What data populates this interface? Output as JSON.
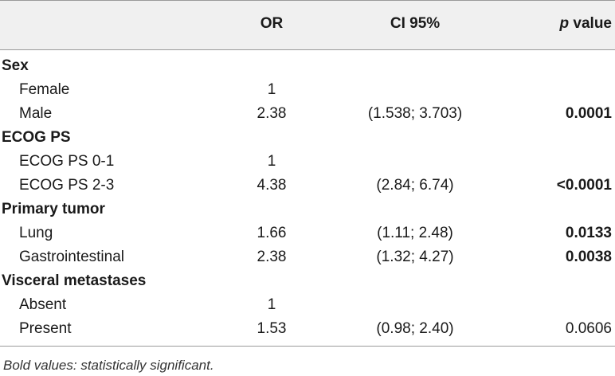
{
  "header": {
    "or": "OR",
    "ci": "CI 95%",
    "p_italic": "p",
    "p_rest": " value"
  },
  "groups": {
    "sex": {
      "label": "Sex",
      "rows": [
        {
          "label": "Female",
          "or": "1",
          "ci": "",
          "p": ""
        },
        {
          "label": "Male",
          "or": "2.38",
          "ci": "(1.538; 3.703)",
          "p": "0.0001"
        }
      ]
    },
    "ecog": {
      "label": "ECOG PS",
      "rows": [
        {
          "label": "ECOG PS 0-1",
          "or": "1",
          "ci": "",
          "p": ""
        },
        {
          "label": "ECOG PS 2-3",
          "or": "4.38",
          "ci": "(2.84; 6.74)",
          "p": "<0.0001"
        }
      ]
    },
    "tumor": {
      "label": "Primary tumor",
      "rows": [
        {
          "label": "Lung",
          "or": "1.66",
          "ci": "(1.11; 2.48)",
          "p": "0.0133"
        },
        {
          "label": "Gastrointestinal",
          "or": "2.38",
          "ci": "(1.32; 4.27)",
          "p": "0.0038"
        }
      ]
    },
    "visceral": {
      "label": "Visceral metastases",
      "rows": [
        {
          "label": "Absent",
          "or": "1",
          "ci": "",
          "p": ""
        },
        {
          "label": "Present",
          "or": "1.53",
          "ci": "(0.98; 2.40)",
          "p": "0.0606"
        }
      ]
    }
  },
  "footnote": "Bold values: statistically significant."
}
